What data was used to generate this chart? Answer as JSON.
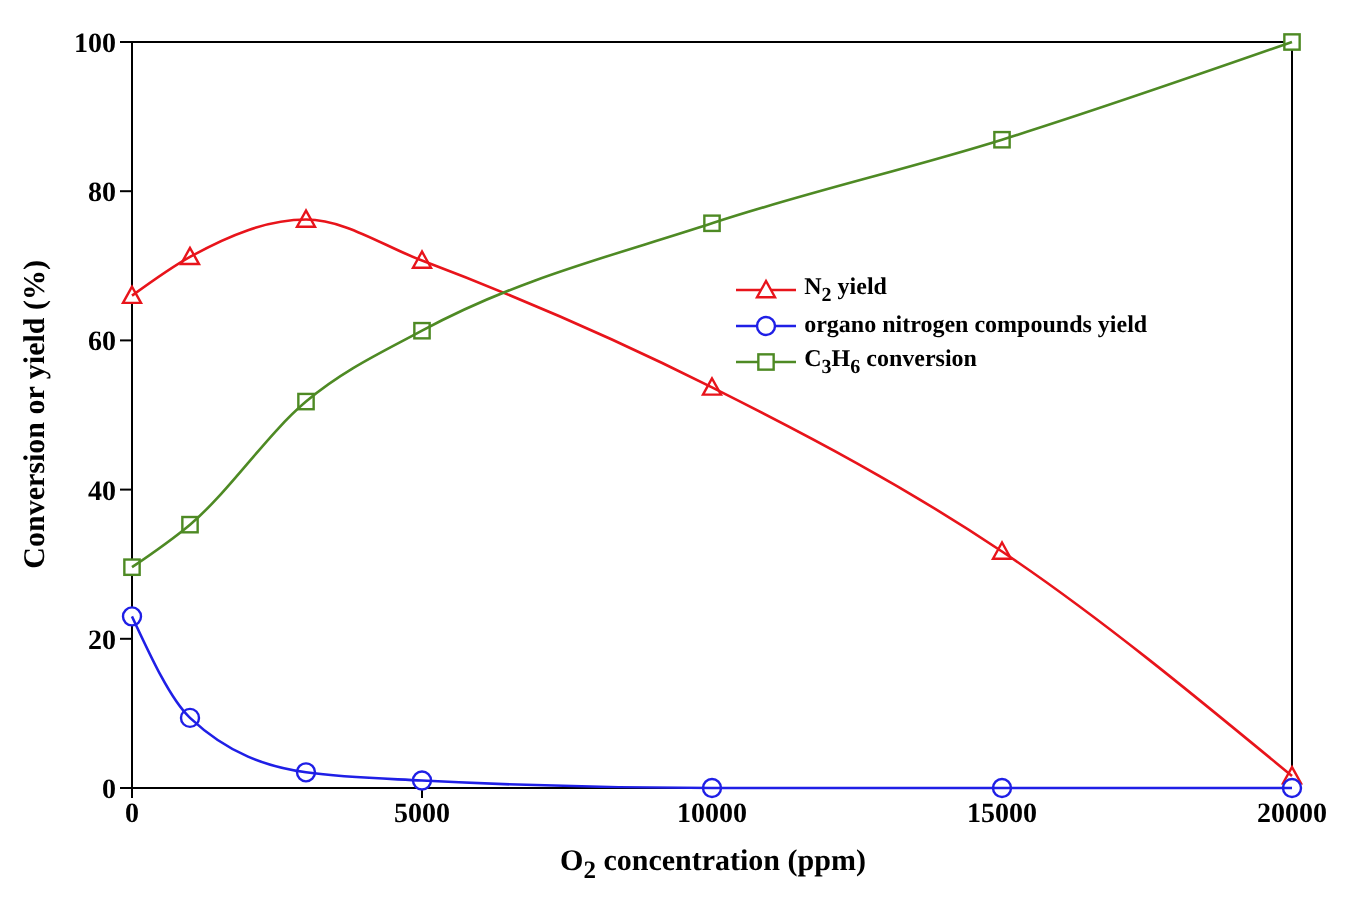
{
  "chart_data": {
    "type": "line",
    "xlabel": "O$_{2}$ concentration (ppm)",
    "ylabel": "Conversion or yield (%)",
    "x": [
      0,
      1000,
      3000,
      5000,
      10000,
      15000,
      20000
    ],
    "series": [
      {
        "name": "N$_{2}$ yield",
        "color": "#e8141b",
        "marker": "triangle",
        "values": [
          66,
          71.2,
          76.2,
          70.7,
          53.7,
          31.7,
          1.6
        ]
      },
      {
        "name": "organo nitrogen compounds yield",
        "color": "#1f1fe6",
        "marker": "circle",
        "values": [
          23,
          9.4,
          2.1,
          1.0,
          0,
          0,
          0
        ]
      },
      {
        "name": "C$_{3}$H$_{6}$ conversion",
        "color": "#4e8a24",
        "marker": "square",
        "values": [
          29.6,
          35.3,
          51.8,
          61.3,
          75.7,
          86.9,
          100
        ]
      }
    ],
    "xlim": [
      0,
      20000
    ],
    "xticks": [
      0,
      5000,
      10000,
      15000,
      20000
    ],
    "ylim": [
      0,
      100
    ],
    "yticks": [
      0,
      20,
      40,
      60,
      80,
      100
    ],
    "grid": false,
    "legend": "right"
  }
}
